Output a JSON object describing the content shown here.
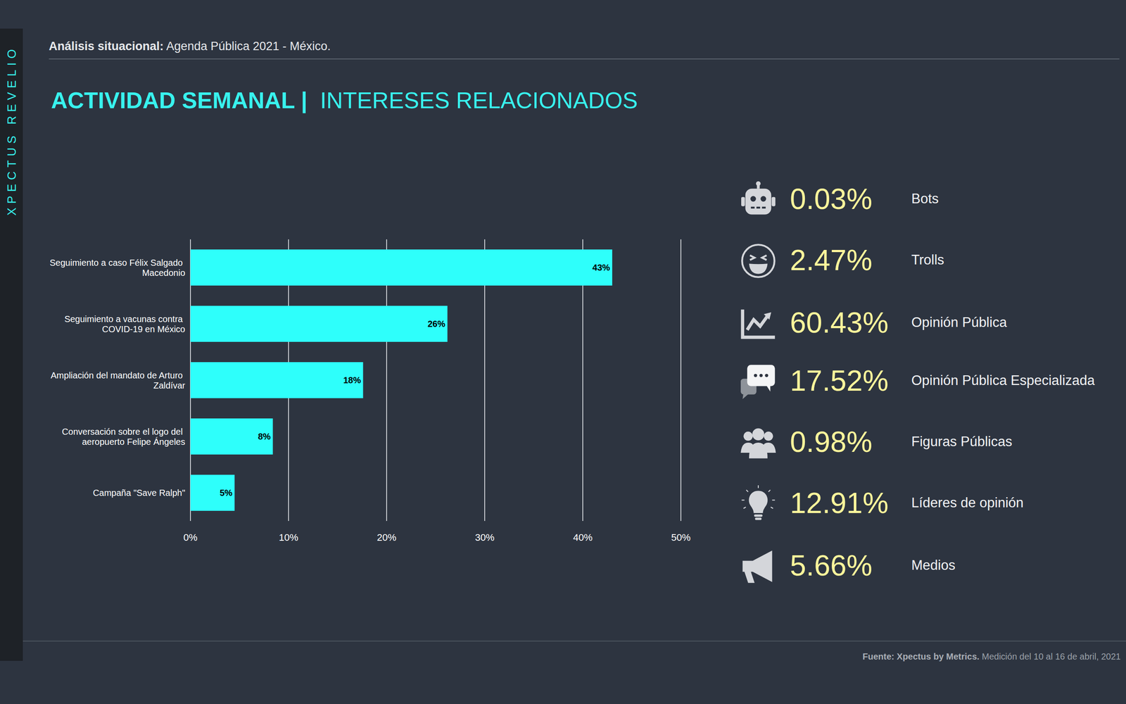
{
  "brand": "XPECTUS REVELIO",
  "header": {
    "bold": "Análisis situacional:",
    "text": "Agenda Pública 2021 - México."
  },
  "title": {
    "bold": "ACTIVIDAD SEMANAL |",
    "text": "INTERESES RELACIONADOS"
  },
  "chart_data": {
    "type": "bar",
    "orientation": "horizontal",
    "categories": [
      "Seguimiento a caso Félix Salgado Macedonio",
      "Seguimiento a vacunas contra COVID-19 en México",
      "Ampliación del mandato de Arturo Zaldívar",
      "Conversación sobre el logo del aeropuerto Felipe Ángeles",
      "Campaña \"Save Ralph\""
    ],
    "values": [
      43,
      26.2,
      17.6,
      8.4,
      4.5
    ],
    "value_labels": [
      "43%",
      "26%",
      "18%",
      "8%",
      "5%"
    ],
    "color": "#2efffb",
    "xlim": [
      0,
      50
    ],
    "xticks": [
      {
        "value": 0,
        "label": "0%"
      },
      {
        "value": 10,
        "label": "10%"
      },
      {
        "value": 20,
        "label": "20%"
      },
      {
        "value": 30,
        "label": "30%"
      },
      {
        "value": 40,
        "label": "40%"
      },
      {
        "value": 50,
        "label": "50%"
      }
    ],
    "grid": true,
    "data_labels": true
  },
  "stats": [
    {
      "value": "0.03%",
      "label": "Bots"
    },
    {
      "value": "2.47%",
      "label": "Trolls"
    },
    {
      "value": "60.43%",
      "label": "Opinión Pública"
    },
    {
      "value": "17.52%",
      "label": "Opinión Pública Especializada"
    },
    {
      "value": "0.98%",
      "label": "Figuras Públicas"
    },
    {
      "value": "12.91%",
      "label": "Líderes de opinión"
    },
    {
      "value": "5.66%",
      "label": "Medios"
    }
  ],
  "footer": {
    "bold": "Fuente: Xpectus by Metrics.",
    "text": "Medición del 10 al 16 de abril, 2021"
  }
}
